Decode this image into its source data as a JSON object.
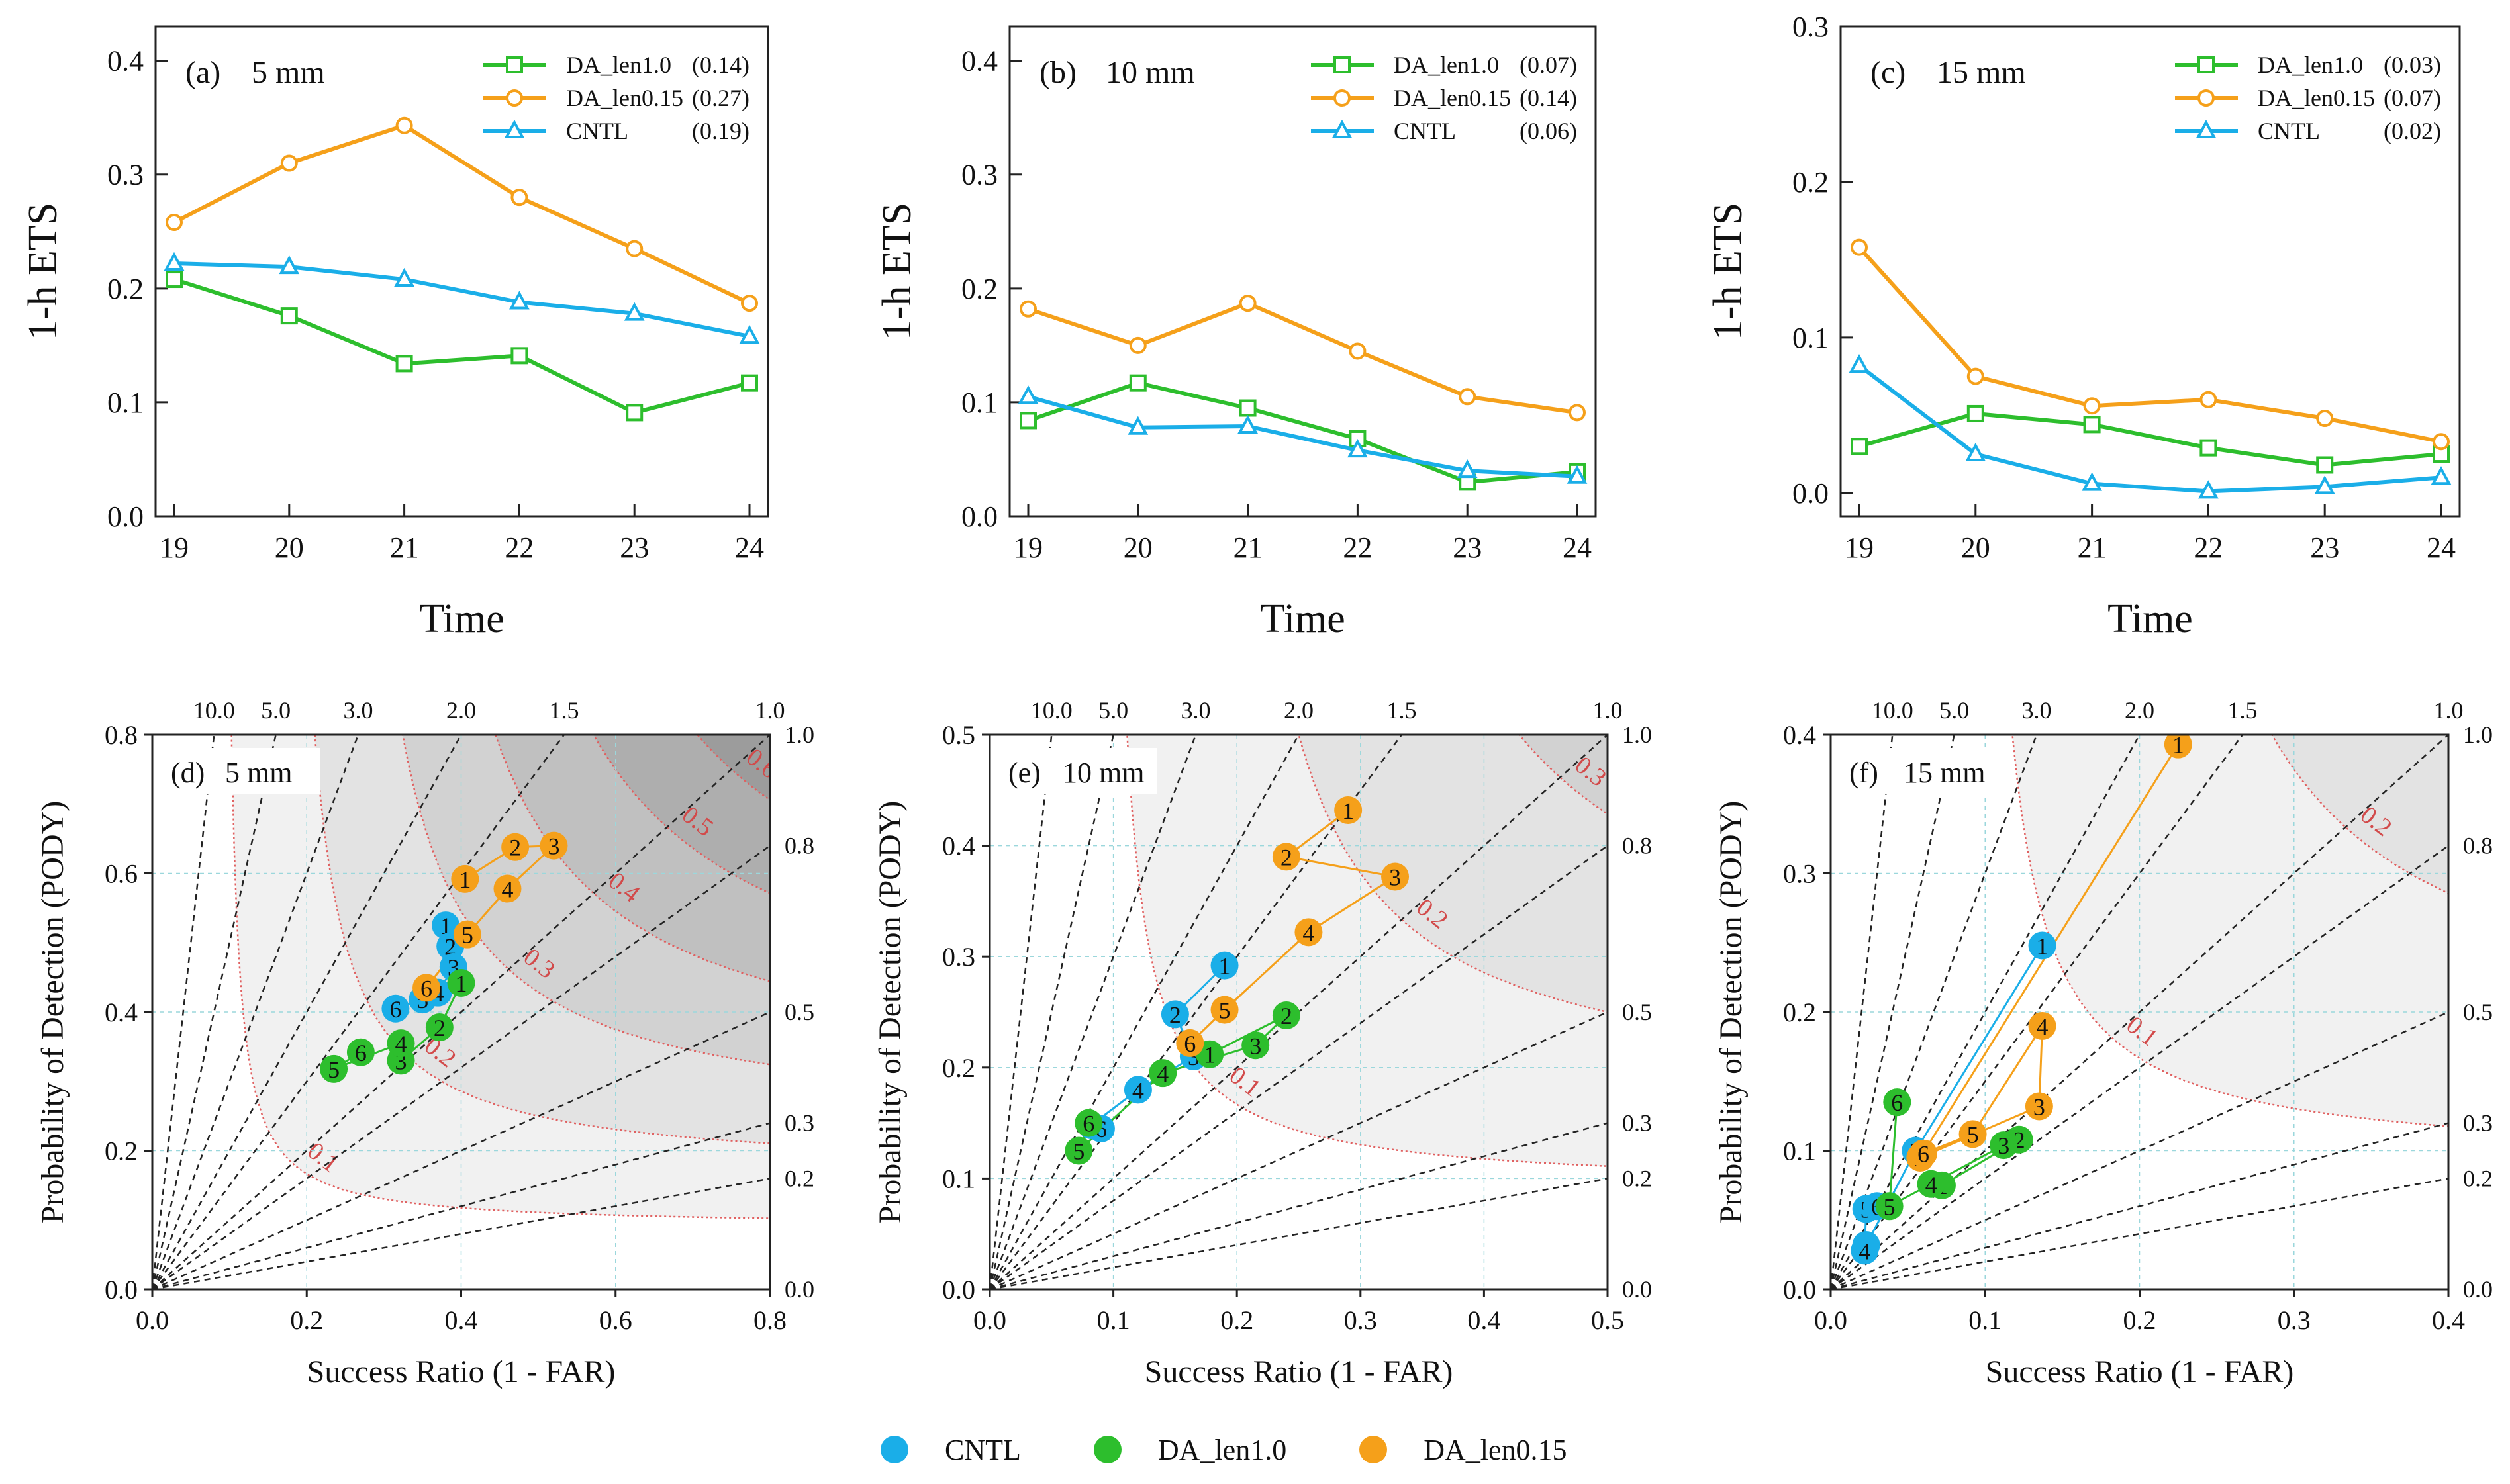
{
  "legend": {
    "items": [
      {
        "label": "CNTL",
        "color": "#1aaee8"
      },
      {
        "label": "DA_len1.0",
        "color": "#2dbe2d"
      },
      {
        "label": "DA_len0.15",
        "color": "#f5a01a"
      }
    ]
  },
  "chart_data": [
    {
      "type": "line",
      "panel": "(a)",
      "title": "5 mm",
      "xlabel": "Time",
      "ylabel": "1-h ETS",
      "x": [
        19,
        20,
        21,
        22,
        23,
        24
      ],
      "xlim": [
        19,
        24
      ],
      "ylim": [
        0.0,
        0.43
      ],
      "yticks": [
        "0.0",
        "0.1",
        "0.2",
        "0.3",
        "0.4"
      ],
      "series": [
        {
          "name": "DA_len1.0",
          "score": "(0.14)",
          "color": "#2dbe2d",
          "marker": "square",
          "values": [
            0.208,
            0.176,
            0.134,
            0.141,
            0.091,
            0.117
          ]
        },
        {
          "name": "DA_len0.15",
          "score": "(0.27)",
          "color": "#f5a01a",
          "marker": "circle",
          "values": [
            0.258,
            0.31,
            0.343,
            0.28,
            0.235,
            0.187
          ]
        },
        {
          "name": "CNTL",
          "score": "(0.19)",
          "color": "#1aaee8",
          "marker": "triangle",
          "values": [
            0.222,
            0.219,
            0.208,
            0.188,
            0.178,
            0.158
          ]
        }
      ]
    },
    {
      "type": "line",
      "panel": "(b)",
      "title": "10 mm",
      "xlabel": "Time",
      "ylabel": "1-h ETS",
      "x": [
        19,
        20,
        21,
        22,
        23,
        24
      ],
      "xlim": [
        19,
        24
      ],
      "ylim": [
        0.0,
        0.43
      ],
      "yticks": [
        "0.0",
        "0.1",
        "0.2",
        "0.3",
        "0.4"
      ],
      "series": [
        {
          "name": "DA_len1.0",
          "score": "(0.07)",
          "color": "#2dbe2d",
          "marker": "square",
          "values": [
            0.084,
            0.117,
            0.095,
            0.068,
            0.03,
            0.039
          ]
        },
        {
          "name": "DA_len0.15",
          "score": "(0.14)",
          "color": "#f5a01a",
          "marker": "circle",
          "values": [
            0.182,
            0.15,
            0.187,
            0.145,
            0.105,
            0.091
          ]
        },
        {
          "name": "CNTL",
          "score": "(0.06)",
          "color": "#1aaee8",
          "marker": "triangle",
          "values": [
            0.105,
            0.078,
            0.079,
            0.058,
            0.04,
            0.035
          ]
        }
      ]
    },
    {
      "type": "line",
      "panel": "(c)",
      "title": "15 mm",
      "xlabel": "Time",
      "ylabel": "1-h ETS",
      "x": [
        19,
        20,
        21,
        22,
        23,
        24
      ],
      "xlim": [
        19,
        24
      ],
      "ylim": [
        -0.015,
        0.3
      ],
      "yticks": [
        "0.0",
        "0.1",
        "0.2",
        "0.3"
      ],
      "series": [
        {
          "name": "DA_len1.0",
          "score": "(0.03)",
          "color": "#2dbe2d",
          "marker": "square",
          "values": [
            0.03,
            0.051,
            0.044,
            0.029,
            0.018,
            0.025
          ]
        },
        {
          "name": "DA_len0.15",
          "score": "(0.07)",
          "color": "#f5a01a",
          "marker": "circle",
          "values": [
            0.158,
            0.075,
            0.056,
            0.06,
            0.048,
            0.033
          ]
        },
        {
          "name": "CNTL",
          "score": "(0.02)",
          "color": "#1aaee8",
          "marker": "triangle",
          "values": [
            0.082,
            0.025,
            0.006,
            0.001,
            0.004,
            0.01
          ]
        }
      ]
    },
    {
      "type": "scatter",
      "chart_kind": "performance diagram",
      "panel": "(d)",
      "title": "5 mm",
      "xlabel": "Success Ratio (1 - FAR)",
      "ylabel": "Probability of Detection (PODY)",
      "xlim": [
        0,
        0.8
      ],
      "ylim": [
        0,
        0.8
      ],
      "xticks": [
        "0.0",
        "0.2",
        "0.4",
        "0.6",
        "0.8"
      ],
      "yticks": [
        "0.0",
        "0.2",
        "0.4",
        "0.6",
        "0.8"
      ],
      "csi_levels": [
        0.1,
        0.2,
        0.3,
        0.4,
        0.5,
        0.6
      ],
      "csi_labels": [
        "0.1",
        "0.2",
        "0.3",
        "0.4",
        "0.5",
        "0.6"
      ],
      "bias_lines": [
        10.0,
        5.0,
        3.0,
        2.0,
        1.5,
        1.0,
        0.8,
        0.5,
        0.3,
        0.2
      ],
      "bias_top_labels": [
        "10.0",
        "5.0",
        "3.0",
        "2.0",
        "1.5",
        "1.0"
      ],
      "bias_right_labels": [
        "1.0",
        "0.8",
        "0.5",
        "0.3",
        "0.2",
        "0.0"
      ],
      "series": [
        {
          "name": "CNTL",
          "color": "#1aaee8",
          "points": [
            {
              "label": "1",
              "x": 0.38,
              "y": 0.525
            },
            {
              "label": "2",
              "x": 0.386,
              "y": 0.495
            },
            {
              "label": "3",
              "x": 0.39,
              "y": 0.465
            },
            {
              "label": "4",
              "x": 0.37,
              "y": 0.428
            },
            {
              "label": "5",
              "x": 0.35,
              "y": 0.418
            },
            {
              "label": "6",
              "x": 0.315,
              "y": 0.405
            }
          ]
        },
        {
          "name": "DA_len1.0",
          "color": "#2dbe2d",
          "points": [
            {
              "label": "1",
              "x": 0.4,
              "y": 0.442
            },
            {
              "label": "2",
              "x": 0.372,
              "y": 0.378
            },
            {
              "label": "3",
              "x": 0.322,
              "y": 0.33
            },
            {
              "label": "4",
              "x": 0.322,
              "y": 0.355
            },
            {
              "label": "5",
              "x": 0.235,
              "y": 0.318
            },
            {
              "label": "6",
              "x": 0.27,
              "y": 0.342
            }
          ]
        },
        {
          "name": "DA_len0.15",
          "color": "#f5a01a",
          "points": [
            {
              "label": "1",
              "x": 0.405,
              "y": 0.592
            },
            {
              "label": "2",
              "x": 0.47,
              "y": 0.638
            },
            {
              "label": "3",
              "x": 0.52,
              "y": 0.64
            },
            {
              "label": "4",
              "x": 0.46,
              "y": 0.578
            },
            {
              "label": "5",
              "x": 0.408,
              "y": 0.512
            },
            {
              "label": "6",
              "x": 0.355,
              "y": 0.435
            }
          ]
        }
      ]
    },
    {
      "type": "scatter",
      "chart_kind": "performance diagram",
      "panel": "(e)",
      "title": "10 mm",
      "xlabel": "Success Ratio (1 - FAR)",
      "ylabel": "Probability of Detection (PODY)",
      "xlim": [
        0,
        0.5
      ],
      "ylim": [
        0,
        0.5
      ],
      "xticks": [
        "0.0",
        "0.1",
        "0.2",
        "0.3",
        "0.4",
        "0.5"
      ],
      "yticks": [
        "0.0",
        "0.1",
        "0.2",
        "0.3",
        "0.4",
        "0.5"
      ],
      "csi_levels": [
        0.1,
        0.2,
        0.3
      ],
      "csi_labels": [
        "0.1",
        "0.2",
        "0.3"
      ],
      "bias_lines": [
        10.0,
        5.0,
        3.0,
        2.0,
        1.5,
        1.0,
        0.8,
        0.5,
        0.3,
        0.2
      ],
      "bias_top_labels": [
        "10.0",
        "5.0",
        "3.0",
        "2.0",
        "1.5",
        "1.0"
      ],
      "bias_right_labels": [
        "1.0",
        "0.8",
        "0.5",
        "0.3",
        "0.2",
        "0.0"
      ],
      "series": [
        {
          "name": "CNTL",
          "color": "#1aaee8",
          "points": [
            {
              "label": "1",
              "x": 0.19,
              "y": 0.292
            },
            {
              "label": "2",
              "x": 0.15,
              "y": 0.248
            },
            {
              "label": "3",
              "x": 0.165,
              "y": 0.21
            },
            {
              "label": "4",
              "x": 0.12,
              "y": 0.18
            },
            {
              "label": "5",
              "x": 0.082,
              "y": 0.148
            },
            {
              "label": "6",
              "x": 0.09,
              "y": 0.145
            }
          ]
        },
        {
          "name": "DA_len1.0",
          "color": "#2dbe2d",
          "points": [
            {
              "label": "1",
              "x": 0.178,
              "y": 0.212
            },
            {
              "label": "2",
              "x": 0.24,
              "y": 0.247
            },
            {
              "label": "3",
              "x": 0.215,
              "y": 0.22
            },
            {
              "label": "4",
              "x": 0.14,
              "y": 0.195
            },
            {
              "label": "5",
              "x": 0.072,
              "y": 0.125
            },
            {
              "label": "6",
              "x": 0.08,
              "y": 0.15
            }
          ]
        },
        {
          "name": "DA_len0.15",
          "color": "#f5a01a",
          "points": [
            {
              "label": "1",
              "x": 0.29,
              "y": 0.432
            },
            {
              "label": "2",
              "x": 0.24,
              "y": 0.39
            },
            {
              "label": "3",
              "x": 0.328,
              "y": 0.372
            },
            {
              "label": "4",
              "x": 0.258,
              "y": 0.322
            },
            {
              "label": "5",
              "x": 0.19,
              "y": 0.252
            },
            {
              "label": "6",
              "x": 0.162,
              "y": 0.222
            }
          ]
        }
      ]
    },
    {
      "type": "scatter",
      "chart_kind": "performance diagram",
      "panel": "(f)",
      "title": "15 mm",
      "xlabel": "Success Ratio (1 - FAR)",
      "ylabel": "Probability of Detection (PODY)",
      "xlim": [
        0,
        0.4
      ],
      "ylim": [
        0,
        0.4
      ],
      "xticks": [
        "0.0",
        "0.1",
        "0.2",
        "0.3",
        "0.4"
      ],
      "yticks": [
        "0.0",
        "0.1",
        "0.2",
        "0.3",
        "0.4"
      ],
      "csi_levels": [
        0.1,
        0.2
      ],
      "csi_labels": [
        "0.1",
        "0.2"
      ],
      "bias_lines": [
        10.0,
        5.0,
        3.0,
        2.0,
        1.5,
        1.0,
        0.8,
        0.5,
        0.3,
        0.2
      ],
      "bias_top_labels": [
        "10.0",
        "5.0",
        "3.0",
        "2.0",
        "1.5",
        "1.0"
      ],
      "bias_right_labels": [
        "1.0",
        "0.8",
        "0.5",
        "0.3",
        "0.2",
        "0.0"
      ],
      "series": [
        {
          "name": "CNTL",
          "color": "#1aaee8",
          "points": [
            {
              "label": "1",
              "x": 0.137,
              "y": 0.248
            },
            {
              "label": "2",
              "x": 0.055,
              "y": 0.1
            },
            {
              "label": "3",
              "x": 0.023,
              "y": 0.032
            },
            {
              "label": "4",
              "x": 0.022,
              "y": 0.028
            },
            {
              "label": "5",
              "x": 0.023,
              "y": 0.058
            },
            {
              "label": "6",
              "x": 0.03,
              "y": 0.06
            }
          ]
        },
        {
          "name": "DA_len1.0",
          "color": "#2dbe2d",
          "points": [
            {
              "label": "1",
              "x": 0.072,
              "y": 0.075
            },
            {
              "label": "2",
              "x": 0.122,
              "y": 0.108
            },
            {
              "label": "3",
              "x": 0.112,
              "y": 0.104
            },
            {
              "label": "4",
              "x": 0.065,
              "y": 0.076
            },
            {
              "label": "5",
              "x": 0.038,
              "y": 0.06
            },
            {
              "label": "6",
              "x": 0.043,
              "y": 0.135
            }
          ]
        },
        {
          "name": "DA_len0.15",
          "color": "#f5a01a",
          "points": [
            {
              "label": "1",
              "x": 0.225,
              "y": 0.393
            },
            {
              "label": "2",
              "x": 0.058,
              "y": 0.095
            },
            {
              "label": "3",
              "x": 0.135,
              "y": 0.132
            },
            {
              "label": "4",
              "x": 0.137,
              "y": 0.19
            },
            {
              "label": "5",
              "x": 0.092,
              "y": 0.112
            },
            {
              "label": "6",
              "x": 0.06,
              "y": 0.098
            }
          ]
        }
      ]
    }
  ]
}
